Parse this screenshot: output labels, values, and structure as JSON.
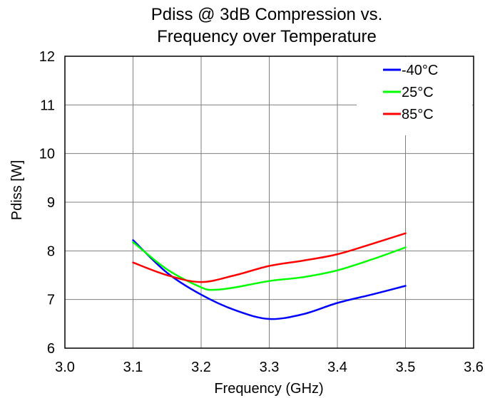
{
  "chart_data": {
    "type": "line",
    "title": [
      "Pdiss @ 3dB Compression vs.",
      "Frequency over Temperature"
    ],
    "xlabel": "Frequency (GHz)",
    "ylabel": "Pdiss [W]",
    "xlim": [
      3.0,
      3.6
    ],
    "ylim": [
      6,
      12
    ],
    "xticks": [
      "3.0",
      "3.1",
      "3.2",
      "3.3",
      "3.4",
      "3.5",
      "3.6"
    ],
    "yticks": [
      "6",
      "7",
      "8",
      "9",
      "10",
      "11",
      "12"
    ],
    "grid": true,
    "legend_position": "top-right",
    "series": [
      {
        "name": "-40°C",
        "color": "#0000ff",
        "x": [
          3.1,
          3.15,
          3.2,
          3.25,
          3.3,
          3.35,
          3.4,
          3.45,
          3.5
        ],
        "y": [
          8.22,
          7.55,
          7.1,
          6.78,
          6.6,
          6.7,
          6.93,
          7.1,
          7.28
        ]
      },
      {
        "name": "25°C",
        "color": "#00ff00",
        "x": [
          3.1,
          3.15,
          3.2,
          3.22,
          3.25,
          3.3,
          3.35,
          3.4,
          3.45,
          3.5
        ],
        "y": [
          8.18,
          7.62,
          7.25,
          7.2,
          7.25,
          7.38,
          7.46,
          7.6,
          7.82,
          8.07
        ]
      },
      {
        "name": "85°C",
        "color": "#ff0000",
        "x": [
          3.1,
          3.15,
          3.2,
          3.25,
          3.3,
          3.35,
          3.4,
          3.45,
          3.5
        ],
        "y": [
          7.76,
          7.5,
          7.36,
          7.5,
          7.69,
          7.8,
          7.93,
          8.14,
          8.36
        ]
      }
    ]
  }
}
